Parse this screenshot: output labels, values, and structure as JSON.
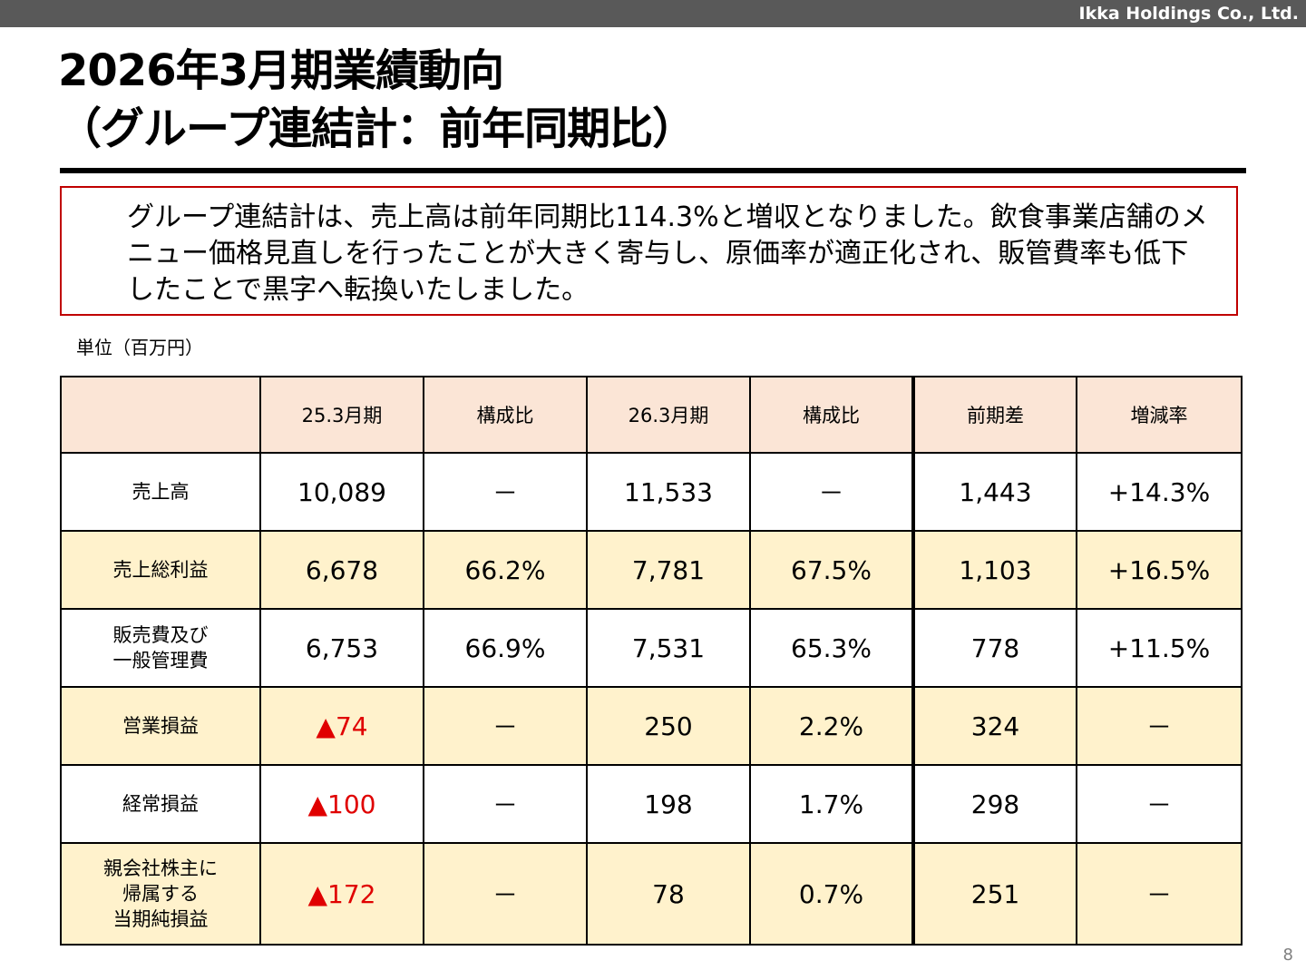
{
  "header": {
    "company": "Ikka Holdings Co., Ltd."
  },
  "title": {
    "line1": "2026年3月期業績動向",
    "line2": "（グループ連結計：前年同期比）"
  },
  "summary": {
    "text": "グループ連結計は、売上高は前年同期比114.3%と増収となりました。飲食事業店舗のメニュー価格見直しを行ったことが大きく寄与し、原価率が適正化され、販管費率も低下したことで黒字へ転換いたしました。"
  },
  "unit_label": "単位（百万円）",
  "table": {
    "columns": [
      "",
      "25.3月期",
      "構成比",
      "26.3月期",
      "構成比",
      "前期差",
      "増減率"
    ],
    "rows": [
      {
        "label": "売上高",
        "cells": [
          "10,089",
          "－",
          "11,533",
          "－",
          "1,443",
          "+14.3%"
        ],
        "negative": [
          false,
          false,
          false,
          false,
          false,
          false
        ],
        "highlight": false
      },
      {
        "label": "売上総利益",
        "cells": [
          "6,678",
          "66.2%",
          "7,781",
          "67.5%",
          "1,103",
          "+16.5%"
        ],
        "negative": [
          false,
          false,
          false,
          false,
          false,
          false
        ],
        "highlight": true
      },
      {
        "label": "販売費及び\n一般管理費",
        "cells": [
          "6,753",
          "66.9%",
          "7,531",
          "65.3%",
          "778",
          "+11.5%"
        ],
        "negative": [
          false,
          false,
          false,
          false,
          false,
          false
        ],
        "highlight": false
      },
      {
        "label": "営業損益",
        "cells": [
          "▲74",
          "－",
          "250",
          "2.2%",
          "324",
          "－"
        ],
        "negative": [
          true,
          false,
          false,
          false,
          false,
          false
        ],
        "highlight": true
      },
      {
        "label": "経常損益",
        "cells": [
          "▲100",
          "－",
          "198",
          "1.7%",
          "298",
          "－"
        ],
        "negative": [
          true,
          false,
          false,
          false,
          false,
          false
        ],
        "highlight": false
      },
      {
        "label": "親会社株主に\n帰属する\n当期純損益",
        "cells": [
          "▲172",
          "－",
          "78",
          "0.7%",
          "251",
          "－"
        ],
        "negative": [
          true,
          false,
          false,
          false,
          false,
          false
        ],
        "highlight": true
      }
    ]
  },
  "colors": {
    "header_bar": "#595959",
    "header_row_bg": "#fbe5d6",
    "highlight_row_bg": "#fff2cc",
    "summary_border": "#c00000",
    "negative_text": "#e00000"
  },
  "page_number": "8"
}
